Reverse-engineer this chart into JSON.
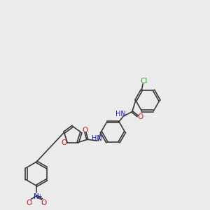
{
  "bg_color": "#ebebeb",
  "bond_color": "#3a3a3a",
  "bond_width": 1.2,
  "atom_colors": {
    "N": "#1a1acc",
    "O": "#cc1a1a",
    "Cl": "#22aa22",
    "H": "#1a1acc"
  },
  "font_size": 6.5,
  "ring6_r": 0.48,
  "furan_r": 0.36,
  "dbo": 0.035
}
